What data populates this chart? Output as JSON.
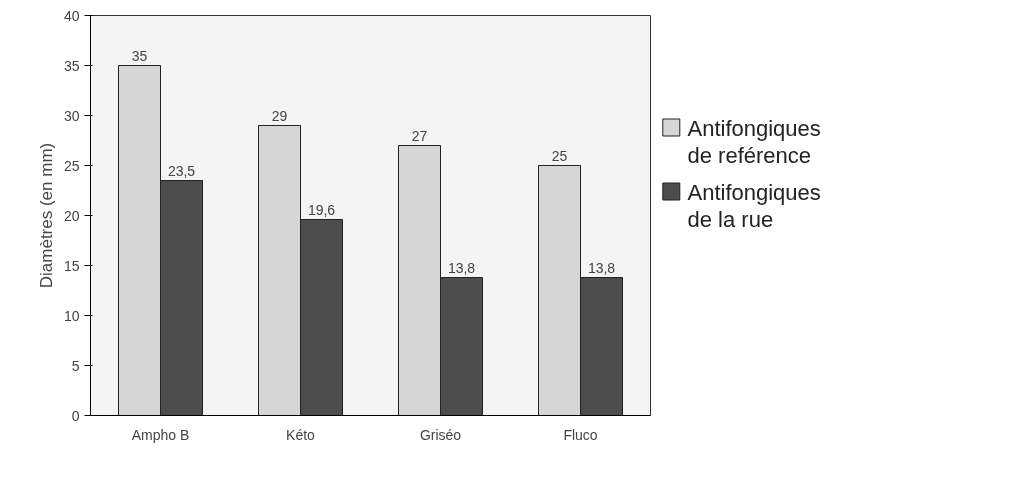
{
  "chart_data": {
    "type": "bar",
    "ylabel": "Diamètres (en mm)",
    "categories": [
      "Ampho B",
      "Kéto",
      "Griséo",
      "Fluco"
    ],
    "series": [
      {
        "name": "Antifongiques de reférence",
        "color": "#d6d6d6",
        "values": [
          35,
          29,
          27,
          25
        ],
        "value_labels": [
          "35",
          "29",
          "27",
          "25"
        ]
      },
      {
        "name": "Antifongiques de la rue",
        "color": "#4d4d4d",
        "values": [
          23.5,
          19.6,
          13.8,
          13.8
        ],
        "value_labels": [
          "23,5",
          "19,6",
          "13,8",
          "13,8"
        ]
      }
    ],
    "ylim": [
      0,
      40
    ],
    "yticks": [
      0,
      5,
      10,
      15,
      20,
      25,
      30,
      35,
      40
    ],
    "grid": false,
    "legend": "right"
  }
}
